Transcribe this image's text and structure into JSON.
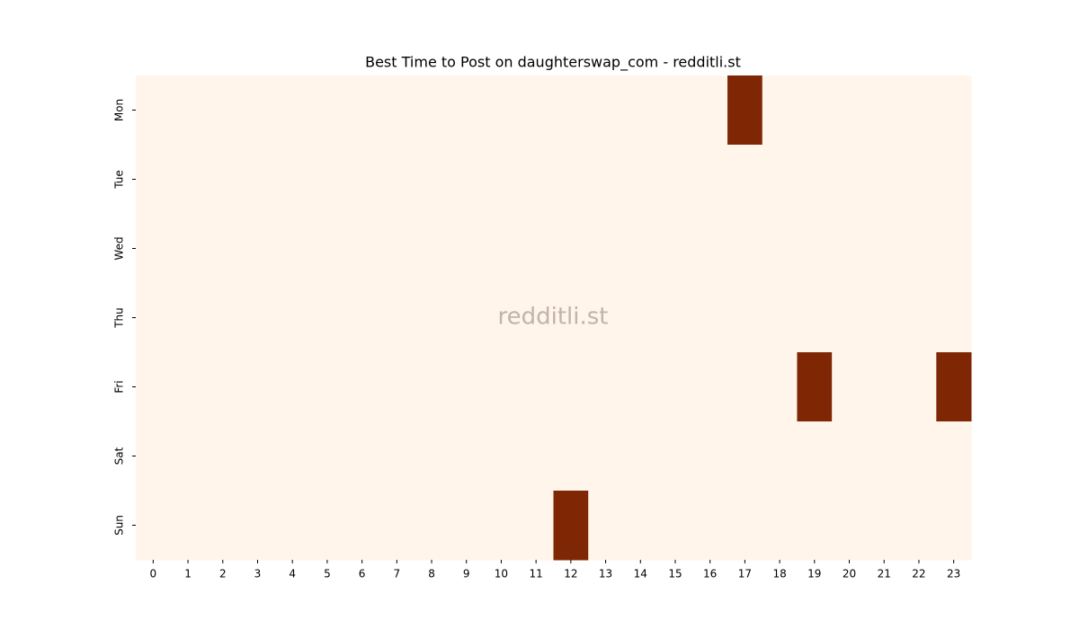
{
  "chart_data": {
    "type": "heatmap",
    "title": "Best Time to Post on daughterswap_com - redditli.st",
    "watermark": "redditli.st",
    "x": [
      0,
      1,
      2,
      3,
      4,
      5,
      6,
      7,
      8,
      9,
      10,
      11,
      12,
      13,
      14,
      15,
      16,
      17,
      18,
      19,
      20,
      21,
      22,
      23
    ],
    "y": [
      "Mon",
      "Tue",
      "Wed",
      "Thu",
      "Fri",
      "Sat",
      "Sun"
    ],
    "values": [
      [
        0,
        0,
        0,
        0,
        0,
        0,
        0,
        0,
        0,
        0,
        0,
        0,
        0,
        0,
        0,
        0,
        0,
        1,
        0,
        0,
        0,
        0,
        0,
        0
      ],
      [
        0,
        0,
        0,
        0,
        0,
        0,
        0,
        0,
        0,
        0,
        0,
        0,
        0,
        0,
        0,
        0,
        0,
        0,
        0,
        0,
        0,
        0,
        0,
        0
      ],
      [
        0,
        0,
        0,
        0,
        0,
        0,
        0,
        0,
        0,
        0,
        0,
        0,
        0,
        0,
        0,
        0,
        0,
        0,
        0,
        0,
        0,
        0,
        0,
        0
      ],
      [
        0,
        0,
        0,
        0,
        0,
        0,
        0,
        0,
        0,
        0,
        0,
        0,
        0,
        0,
        0,
        0,
        0,
        0,
        0,
        0,
        0,
        0,
        0,
        0
      ],
      [
        0,
        0,
        0,
        0,
        0,
        0,
        0,
        0,
        0,
        0,
        0,
        0,
        0,
        0,
        0,
        0,
        0,
        0,
        0,
        1,
        0,
        0,
        0,
        1
      ],
      [
        0,
        0,
        0,
        0,
        0,
        0,
        0,
        0,
        0,
        0,
        0,
        0,
        0,
        0,
        0,
        0,
        0,
        0,
        0,
        0,
        0,
        0,
        0,
        0
      ],
      [
        0,
        0,
        0,
        0,
        0,
        0,
        0,
        0,
        0,
        0,
        0,
        0,
        1,
        0,
        0,
        0,
        0,
        0,
        0,
        0,
        0,
        0,
        0,
        0
      ]
    ],
    "zlim": [
      0,
      1
    ],
    "colormap": [
      "#fff5eb",
      "#7f2704"
    ]
  }
}
